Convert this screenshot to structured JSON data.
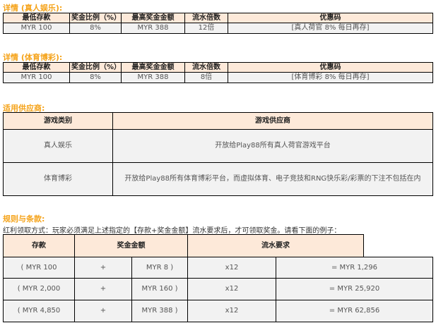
{
  "live": {
    "title": "详情 (真人娱乐):",
    "headers": [
      "最低存款",
      "奖金比例（%）",
      "最高奖金金额",
      "流水倍数",
      "优惠码"
    ],
    "row": [
      "MYR 100",
      "8%",
      "MYR 388",
      "12倍",
      "[真人荷官 8% 每日再存]"
    ]
  },
  "sports": {
    "title": "详情 (体育博彩):",
    "headers": [
      "最低存款",
      "奖金比例（%）",
      "最高奖金金额",
      "流水倍数",
      "优惠码"
    ],
    "row": [
      "MYR 100",
      "8%",
      "MYR 388",
      "8倍",
      "[体育博彩 8% 每日再存]"
    ]
  },
  "providers": {
    "title": "适用供应商:",
    "headers": [
      "游戏类别",
      "游戏供应商"
    ],
    "rows": [
      [
        "真人娱乐",
        "开放给Play88所有真人荷官游戏平台"
      ],
      [
        "体育博彩",
        "开放给Play88所有体育博彩平台，而虚拟体育、电子竞技和RNG快乐彩/彩票的下注不包括在内"
      ]
    ]
  },
  "rules": {
    "title": "规则与条款:",
    "note": "红利领取方式：玩家必须满足上述指定的【存款+奖金金额】流水要求后，才可领取奖金。请看下面的例子：",
    "headers": [
      "存款",
      "奖金金额",
      "流水要求"
    ],
    "rows": [
      [
        "( MYR 100",
        "+",
        "MYR 8 )",
        "x12",
        "= MYR 1,296"
      ],
      [
        "( MYR 2,000",
        "+",
        "MYR 160 )",
        "x12",
        "= MYR 25,920"
      ],
      [
        "( MYR 4,850",
        "+",
        "MYR 388 )",
        "x12",
        "= MYR 62,856"
      ]
    ]
  },
  "colors": {
    "title": "#f5a31a",
    "header_bg": "#fde9d9",
    "cell_bg": "#f2f2f2"
  }
}
